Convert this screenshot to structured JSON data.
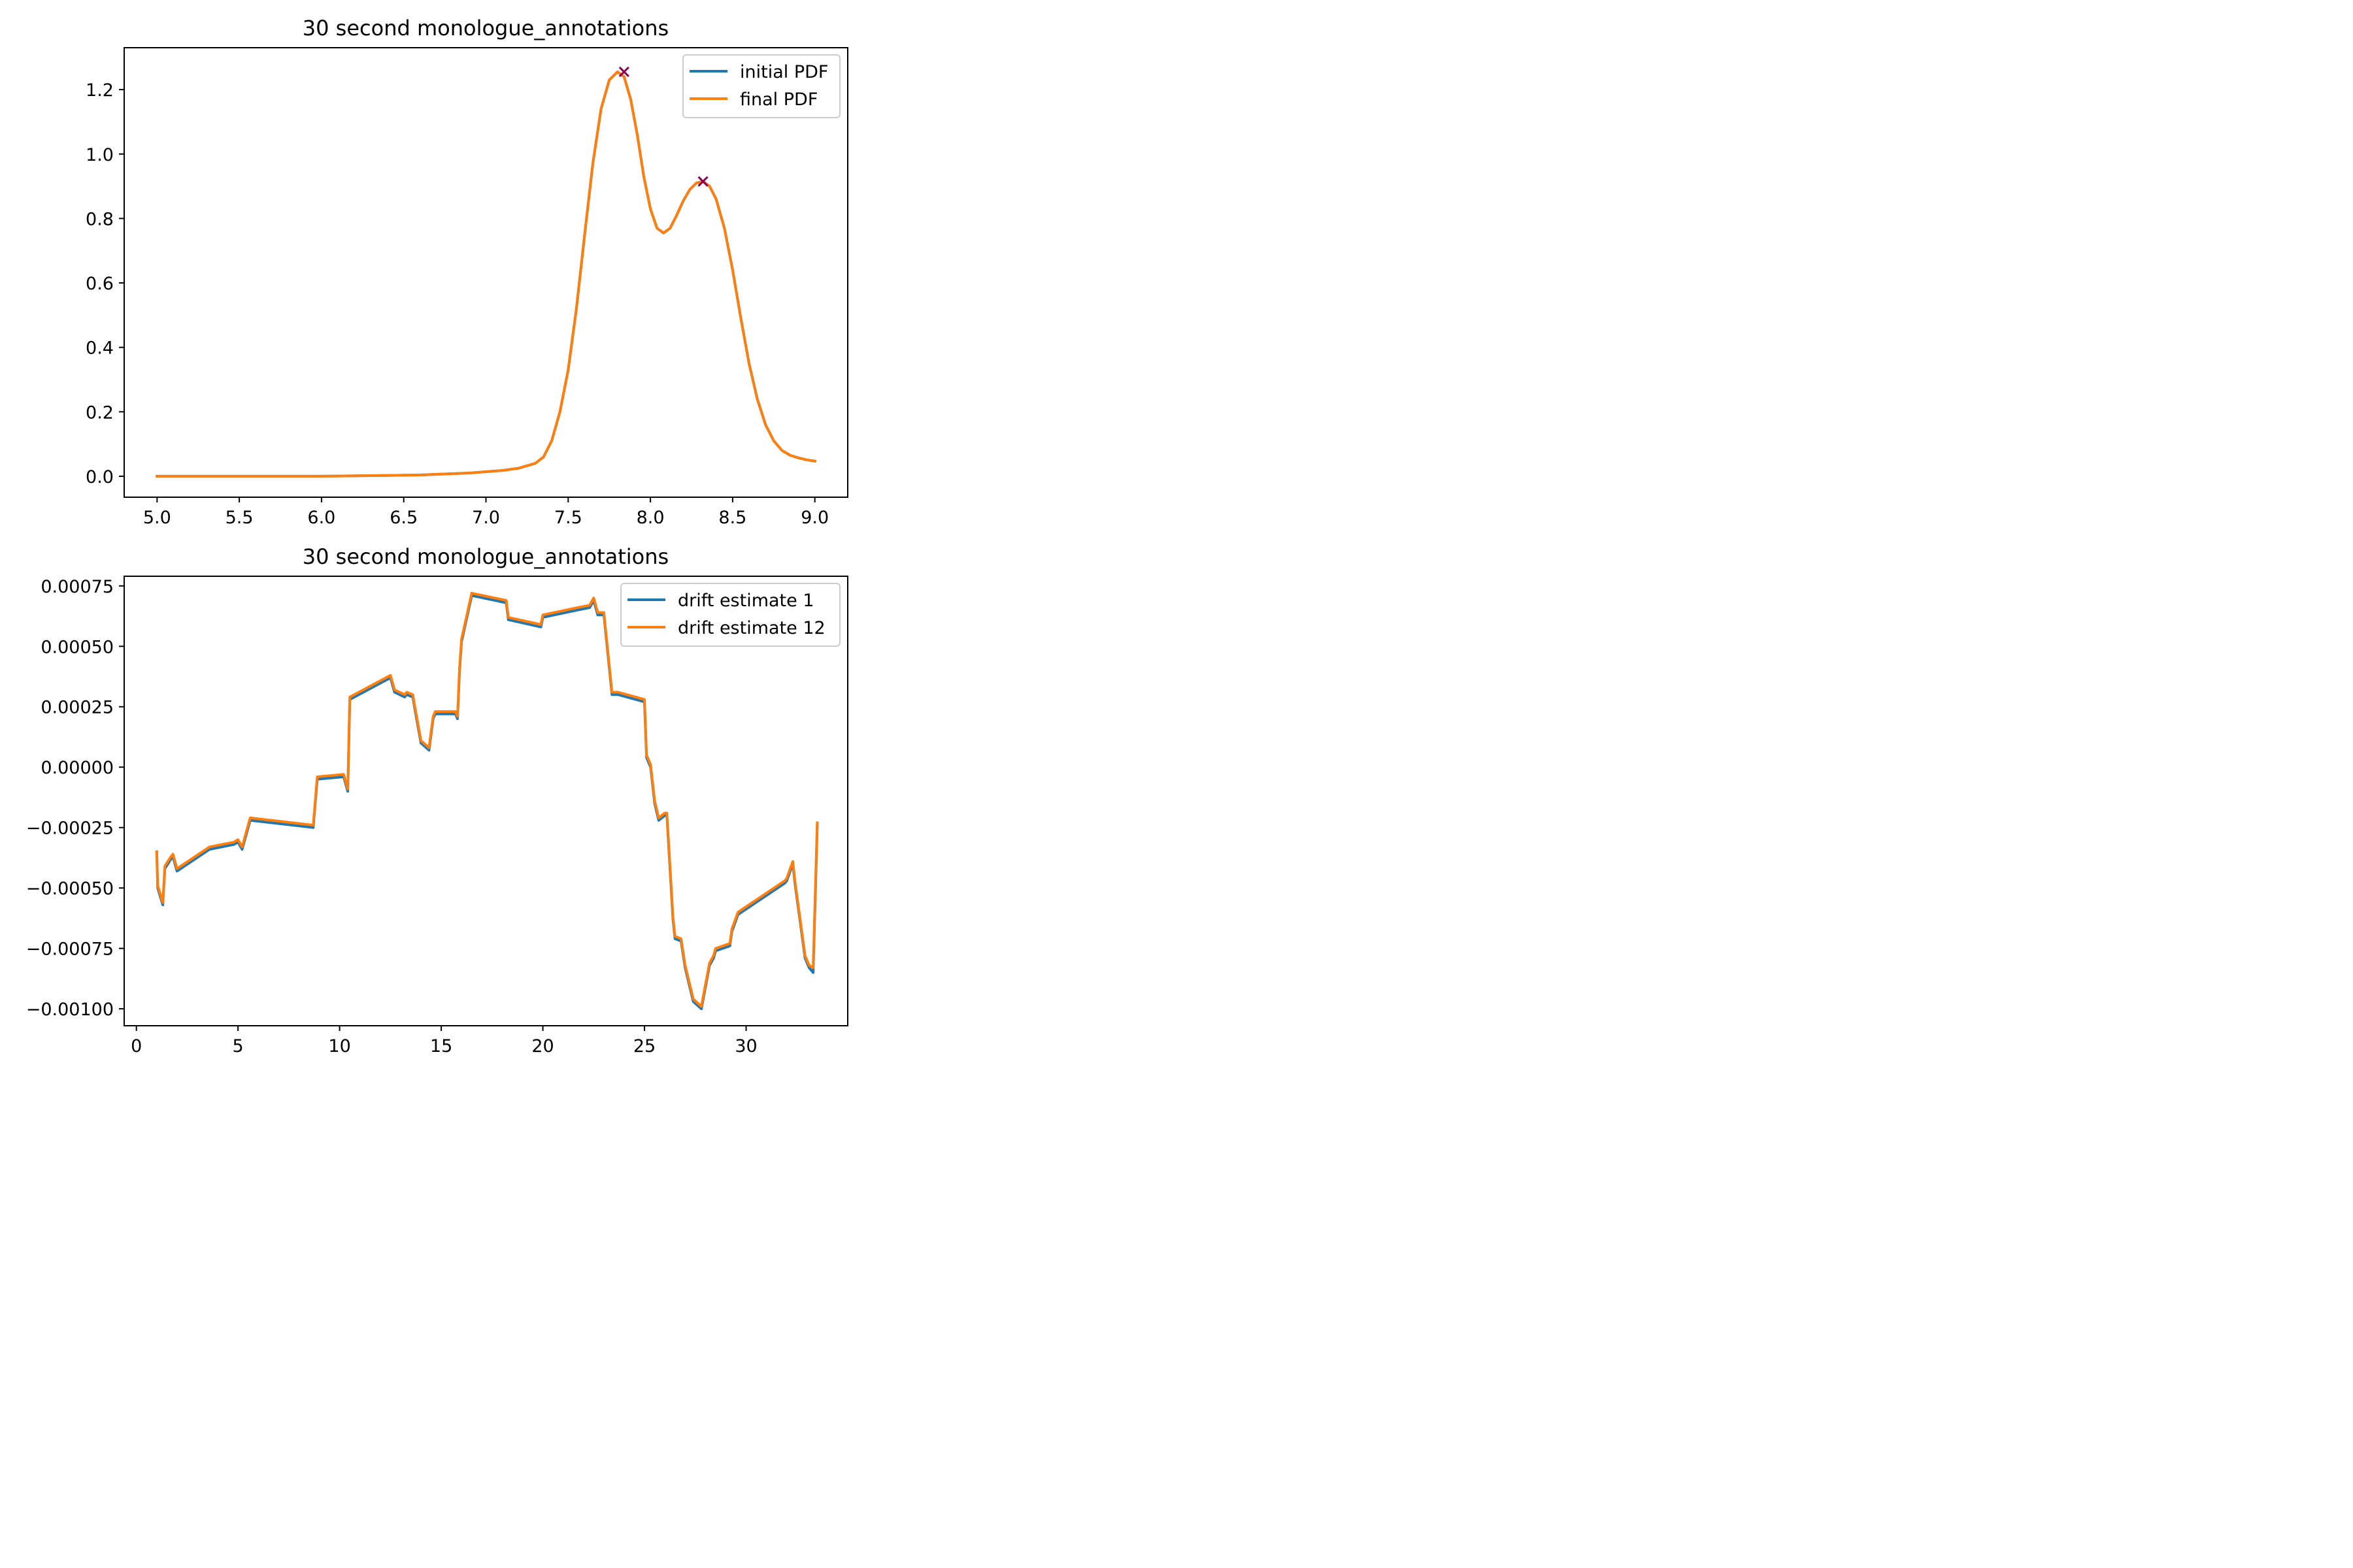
{
  "chart_data": [
    {
      "type": "line",
      "title": "30 second monologue_annotations",
      "xlabel": "",
      "ylabel": "",
      "xlim": [
        4.8,
        9.2
      ],
      "ylim": [
        -0.065,
        1.33
      ],
      "xticks": [
        5.0,
        5.5,
        6.0,
        6.5,
        7.0,
        7.5,
        8.0,
        8.5,
        9.0
      ],
      "yticks": [
        0.0,
        0.2,
        0.4,
        0.6,
        0.8,
        1.0,
        1.2
      ],
      "xtick_labels": [
        "5.0",
        "5.5",
        "6.0",
        "6.5",
        "7.0",
        "7.5",
        "8.0",
        "8.5",
        "9.0"
      ],
      "ytick_labels": [
        "0.0",
        "0.2",
        "0.4",
        "0.6",
        "0.8",
        "1.0",
        "1.2"
      ],
      "grid": false,
      "legend": "upper right",
      "series": [
        {
          "name": "initial PDF",
          "color": "#1f77b4",
          "x": [
            5.0,
            5.5,
            6.0,
            6.3,
            6.6,
            6.9,
            7.1,
            7.2,
            7.3,
            7.35,
            7.4,
            7.45,
            7.5,
            7.55,
            7.6,
            7.65,
            7.7,
            7.75,
            7.8,
            7.84,
            7.88,
            7.92,
            7.96,
            8.0,
            8.04,
            8.08,
            8.12,
            8.16,
            8.2,
            8.24,
            8.28,
            8.32,
            8.36,
            8.4,
            8.45,
            8.5,
            8.55,
            8.6,
            8.65,
            8.7,
            8.75,
            8.8,
            8.85,
            8.9,
            8.95,
            9.0
          ],
          "y": [
            0.0,
            0.0,
            0.0,
            0.002,
            0.004,
            0.01,
            0.018,
            0.025,
            0.04,
            0.06,
            0.11,
            0.2,
            0.33,
            0.52,
            0.75,
            0.97,
            1.14,
            1.23,
            1.255,
            1.24,
            1.17,
            1.06,
            0.93,
            0.83,
            0.77,
            0.755,
            0.77,
            0.81,
            0.855,
            0.89,
            0.91,
            0.915,
            0.9,
            0.86,
            0.77,
            0.64,
            0.49,
            0.35,
            0.24,
            0.16,
            0.11,
            0.08,
            0.065,
            0.057,
            0.051,
            0.047
          ]
        },
        {
          "name": "final PDF",
          "color": "#ff7f0e",
          "x": [
            5.0,
            5.5,
            6.0,
            6.3,
            6.6,
            6.9,
            7.1,
            7.2,
            7.3,
            7.35,
            7.4,
            7.45,
            7.5,
            7.55,
            7.6,
            7.65,
            7.7,
            7.75,
            7.8,
            7.84,
            7.88,
            7.92,
            7.96,
            8.0,
            8.04,
            8.08,
            8.12,
            8.16,
            8.2,
            8.24,
            8.28,
            8.32,
            8.36,
            8.4,
            8.45,
            8.5,
            8.55,
            8.6,
            8.65,
            8.7,
            8.75,
            8.8,
            8.85,
            8.9,
            8.95,
            9.0
          ],
          "y": [
            0.0,
            0.0,
            0.0,
            0.002,
            0.004,
            0.01,
            0.018,
            0.025,
            0.04,
            0.06,
            0.11,
            0.2,
            0.33,
            0.52,
            0.75,
            0.97,
            1.14,
            1.23,
            1.255,
            1.24,
            1.17,
            1.06,
            0.93,
            0.83,
            0.77,
            0.755,
            0.77,
            0.81,
            0.855,
            0.89,
            0.91,
            0.915,
            0.9,
            0.86,
            0.77,
            0.64,
            0.49,
            0.35,
            0.24,
            0.16,
            0.11,
            0.08,
            0.065,
            0.057,
            0.051,
            0.047
          ]
        }
      ],
      "peaks": {
        "color": "#8b0050",
        "x": [
          7.84,
          8.32
        ],
        "y": [
          1.255,
          0.915
        ]
      }
    },
    {
      "type": "line",
      "title": "30 second monologue_annotations",
      "xlabel": "",
      "ylabel": "",
      "xlim": [
        -0.6,
        35.0
      ],
      "ylim": [
        -0.00107,
        0.00079
      ],
      "xticks": [
        0,
        5,
        10,
        15,
        20,
        25,
        30
      ],
      "yticks": [
        -0.001,
        -0.00075,
        -0.0005,
        -0.00025,
        0.0,
        0.00025,
        0.0005,
        0.00075
      ],
      "xtick_labels": [
        "0",
        "5",
        "10",
        "15",
        "20",
        "25",
        "30"
      ],
      "ytick_labels": [
        "−0.00100",
        "−0.00075",
        "−0.00050",
        "−0.00025",
        "0.00000",
        "0.00025",
        "0.00050",
        "0.00075"
      ],
      "grid": false,
      "legend": "upper right",
      "series": [
        {
          "name": "drift estimate 1",
          "color": "#1f77b4",
          "x": [
            1.0,
            1.05,
            1.3,
            1.4,
            1.7,
            1.8,
            2.0,
            3.6,
            4.8,
            5.0,
            5.2,
            5.6,
            8.7,
            8.9,
            10.2,
            10.4,
            10.5,
            12.5,
            12.7,
            13.2,
            13.3,
            13.6,
            13.7,
            14.0,
            14.4,
            14.6,
            14.7,
            15.7,
            15.8,
            15.9,
            16.0,
            16.5,
            18.2,
            18.3,
            19.9,
            20.0,
            21.7,
            22.3,
            22.5,
            22.7,
            23.0,
            23.4,
            23.7,
            25.0,
            25.1,
            25.3,
            25.5,
            25.7,
            26.0,
            26.1,
            26.4,
            26.5,
            26.8,
            27.0,
            27.4,
            27.8,
            28.2,
            28.4,
            28.5,
            29.2,
            29.3,
            29.6,
            31.9,
            32.0,
            32.3,
            32.4,
            32.9,
            33.1,
            33.3,
            33.5
          ],
          "y": [
            -0.00035,
            -0.0005,
            -0.00057,
            -0.00042,
            -0.00038,
            -0.00037,
            -0.00043,
            -0.00034,
            -0.00032,
            -0.00031,
            -0.00034,
            -0.00022,
            -0.00025,
            -5e-05,
            -4e-05,
            -0.0001,
            0.00028,
            0.00037,
            0.00031,
            0.00029,
            0.0003,
            0.00029,
            0.00024,
            0.0001,
            7e-05,
            0.0002,
            0.00022,
            0.00022,
            0.0002,
            0.0004,
            0.00052,
            0.00071,
            0.00068,
            0.00061,
            0.00058,
            0.00062,
            0.00065,
            0.00066,
            0.00069,
            0.00063,
            0.00063,
            0.0003,
            0.0003,
            0.00027,
            4e-05,
            0.0,
            -0.00015,
            -0.00022,
            -0.0002,
            -0.0002,
            -0.00063,
            -0.00071,
            -0.00072,
            -0.00083,
            -0.00097,
            -0.001,
            -0.00082,
            -0.00079,
            -0.00076,
            -0.00074,
            -0.00068,
            -0.00061,
            -0.00048,
            -0.00047,
            -0.0004,
            -0.00048,
            -0.00079,
            -0.00083,
            -0.00085,
            -0.00024
          ]
        },
        {
          "name": "drift estimate 12",
          "color": "#ff7f0e",
          "x": [
            1.0,
            1.05,
            1.3,
            1.4,
            1.7,
            1.8,
            2.0,
            3.6,
            4.8,
            5.0,
            5.2,
            5.6,
            8.7,
            8.9,
            10.2,
            10.4,
            10.5,
            12.5,
            12.7,
            13.2,
            13.3,
            13.6,
            13.7,
            14.0,
            14.4,
            14.6,
            14.7,
            15.7,
            15.8,
            15.9,
            16.0,
            16.5,
            18.2,
            18.3,
            19.9,
            20.0,
            21.7,
            22.3,
            22.5,
            22.7,
            23.0,
            23.4,
            23.7,
            25.0,
            25.1,
            25.3,
            25.5,
            25.7,
            26.0,
            26.1,
            26.4,
            26.5,
            26.8,
            27.0,
            27.4,
            27.8,
            28.2,
            28.4,
            28.5,
            29.2,
            29.3,
            29.6,
            31.9,
            32.0,
            32.3,
            32.4,
            32.9,
            33.1,
            33.3,
            33.5
          ],
          "y": [
            -0.00035,
            -0.00049,
            -0.00056,
            -0.00041,
            -0.00037,
            -0.00036,
            -0.00042,
            -0.00033,
            -0.00031,
            -0.0003,
            -0.00033,
            -0.00021,
            -0.00024,
            -4e-05,
            -3e-05,
            -9e-05,
            0.00029,
            0.00038,
            0.00032,
            0.0003,
            0.00031,
            0.0003,
            0.00025,
            0.00011,
            8e-05,
            0.00021,
            0.00023,
            0.00023,
            0.00021,
            0.00041,
            0.00053,
            0.00072,
            0.00069,
            0.00062,
            0.00059,
            0.00063,
            0.00066,
            0.00067,
            0.0007,
            0.00064,
            0.00064,
            0.00031,
            0.00031,
            0.00028,
            5e-05,
            1e-05,
            -0.00014,
            -0.00021,
            -0.00019,
            -0.00019,
            -0.00062,
            -0.0007,
            -0.00071,
            -0.00082,
            -0.00096,
            -0.00099,
            -0.00081,
            -0.00078,
            -0.00075,
            -0.00073,
            -0.00067,
            -0.0006,
            -0.00047,
            -0.00046,
            -0.00039,
            -0.00047,
            -0.00078,
            -0.00082,
            -0.00083,
            -0.00023
          ]
        }
      ]
    }
  ]
}
